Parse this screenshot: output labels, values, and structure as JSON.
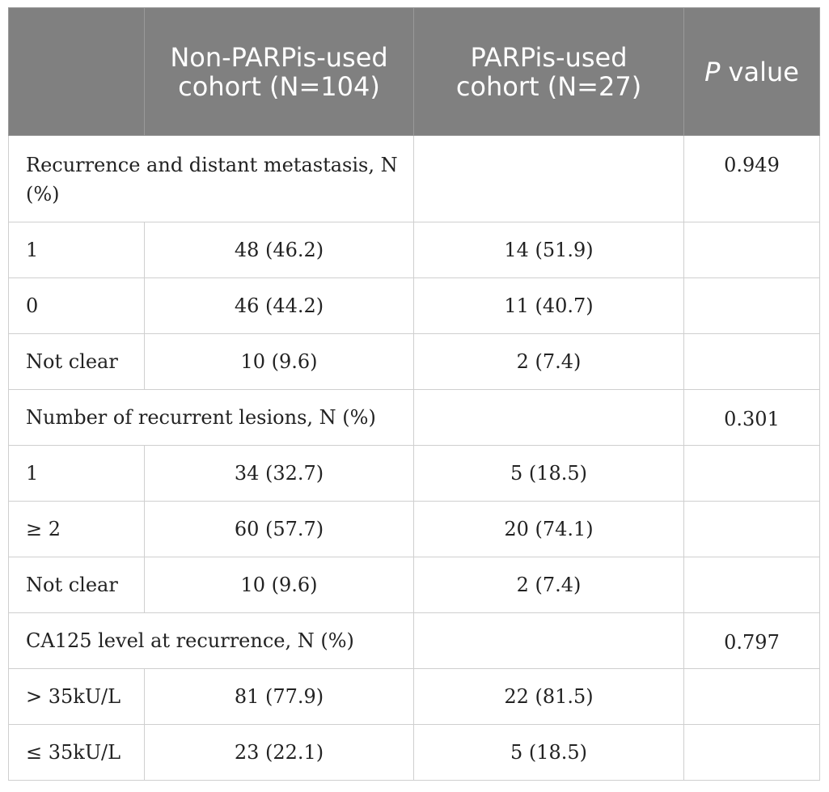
{
  "header": {
    "col0": "",
    "col1": "Non-PARPis-used cohort (N=104)",
    "col2": "PARPis-used cohort (N=27)",
    "col3_italic": "P",
    "col3_rest": " value"
  },
  "sections": [
    {
      "title": "Recurrence and distant metastasis, N (%)",
      "p": "0.949",
      "rows": [
        {
          "label": "1",
          "a": "48 (46.2)",
          "b": "14 (51.9)"
        },
        {
          "label": "0",
          "a": "46 (44.2)",
          "b": "11 (40.7)"
        },
        {
          "label": "Not clear",
          "a": "10 (9.6)",
          "b": "2 (7.4)"
        }
      ]
    },
    {
      "title": "Number of recurrent lesions, N (%)",
      "p": "0.301",
      "rows": [
        {
          "label": "1",
          "a": "34 (32.7)",
          "b": "5 (18.5)"
        },
        {
          "label": "≥ 2",
          "a": "60 (57.7)",
          "b": "20 (74.1)"
        },
        {
          "label": "Not clear",
          "a": "10 (9.6)",
          "b": "2 (7.4)"
        }
      ]
    },
    {
      "title": "CA125 level at recurrence, N (%)",
      "p": "0.797",
      "rows": [
        {
          "label": "> 35kU/L",
          "a": "81 (77.9)",
          "b": "22 (81.5)"
        },
        {
          "label": "≤ 35kU/L",
          "a": "23 (22.1)",
          "b": "5 (18.5)"
        }
      ]
    }
  ],
  "colors": {
    "header_bg": "#808080",
    "header_text": "#ffffff",
    "grid": "#cfcfcf"
  }
}
